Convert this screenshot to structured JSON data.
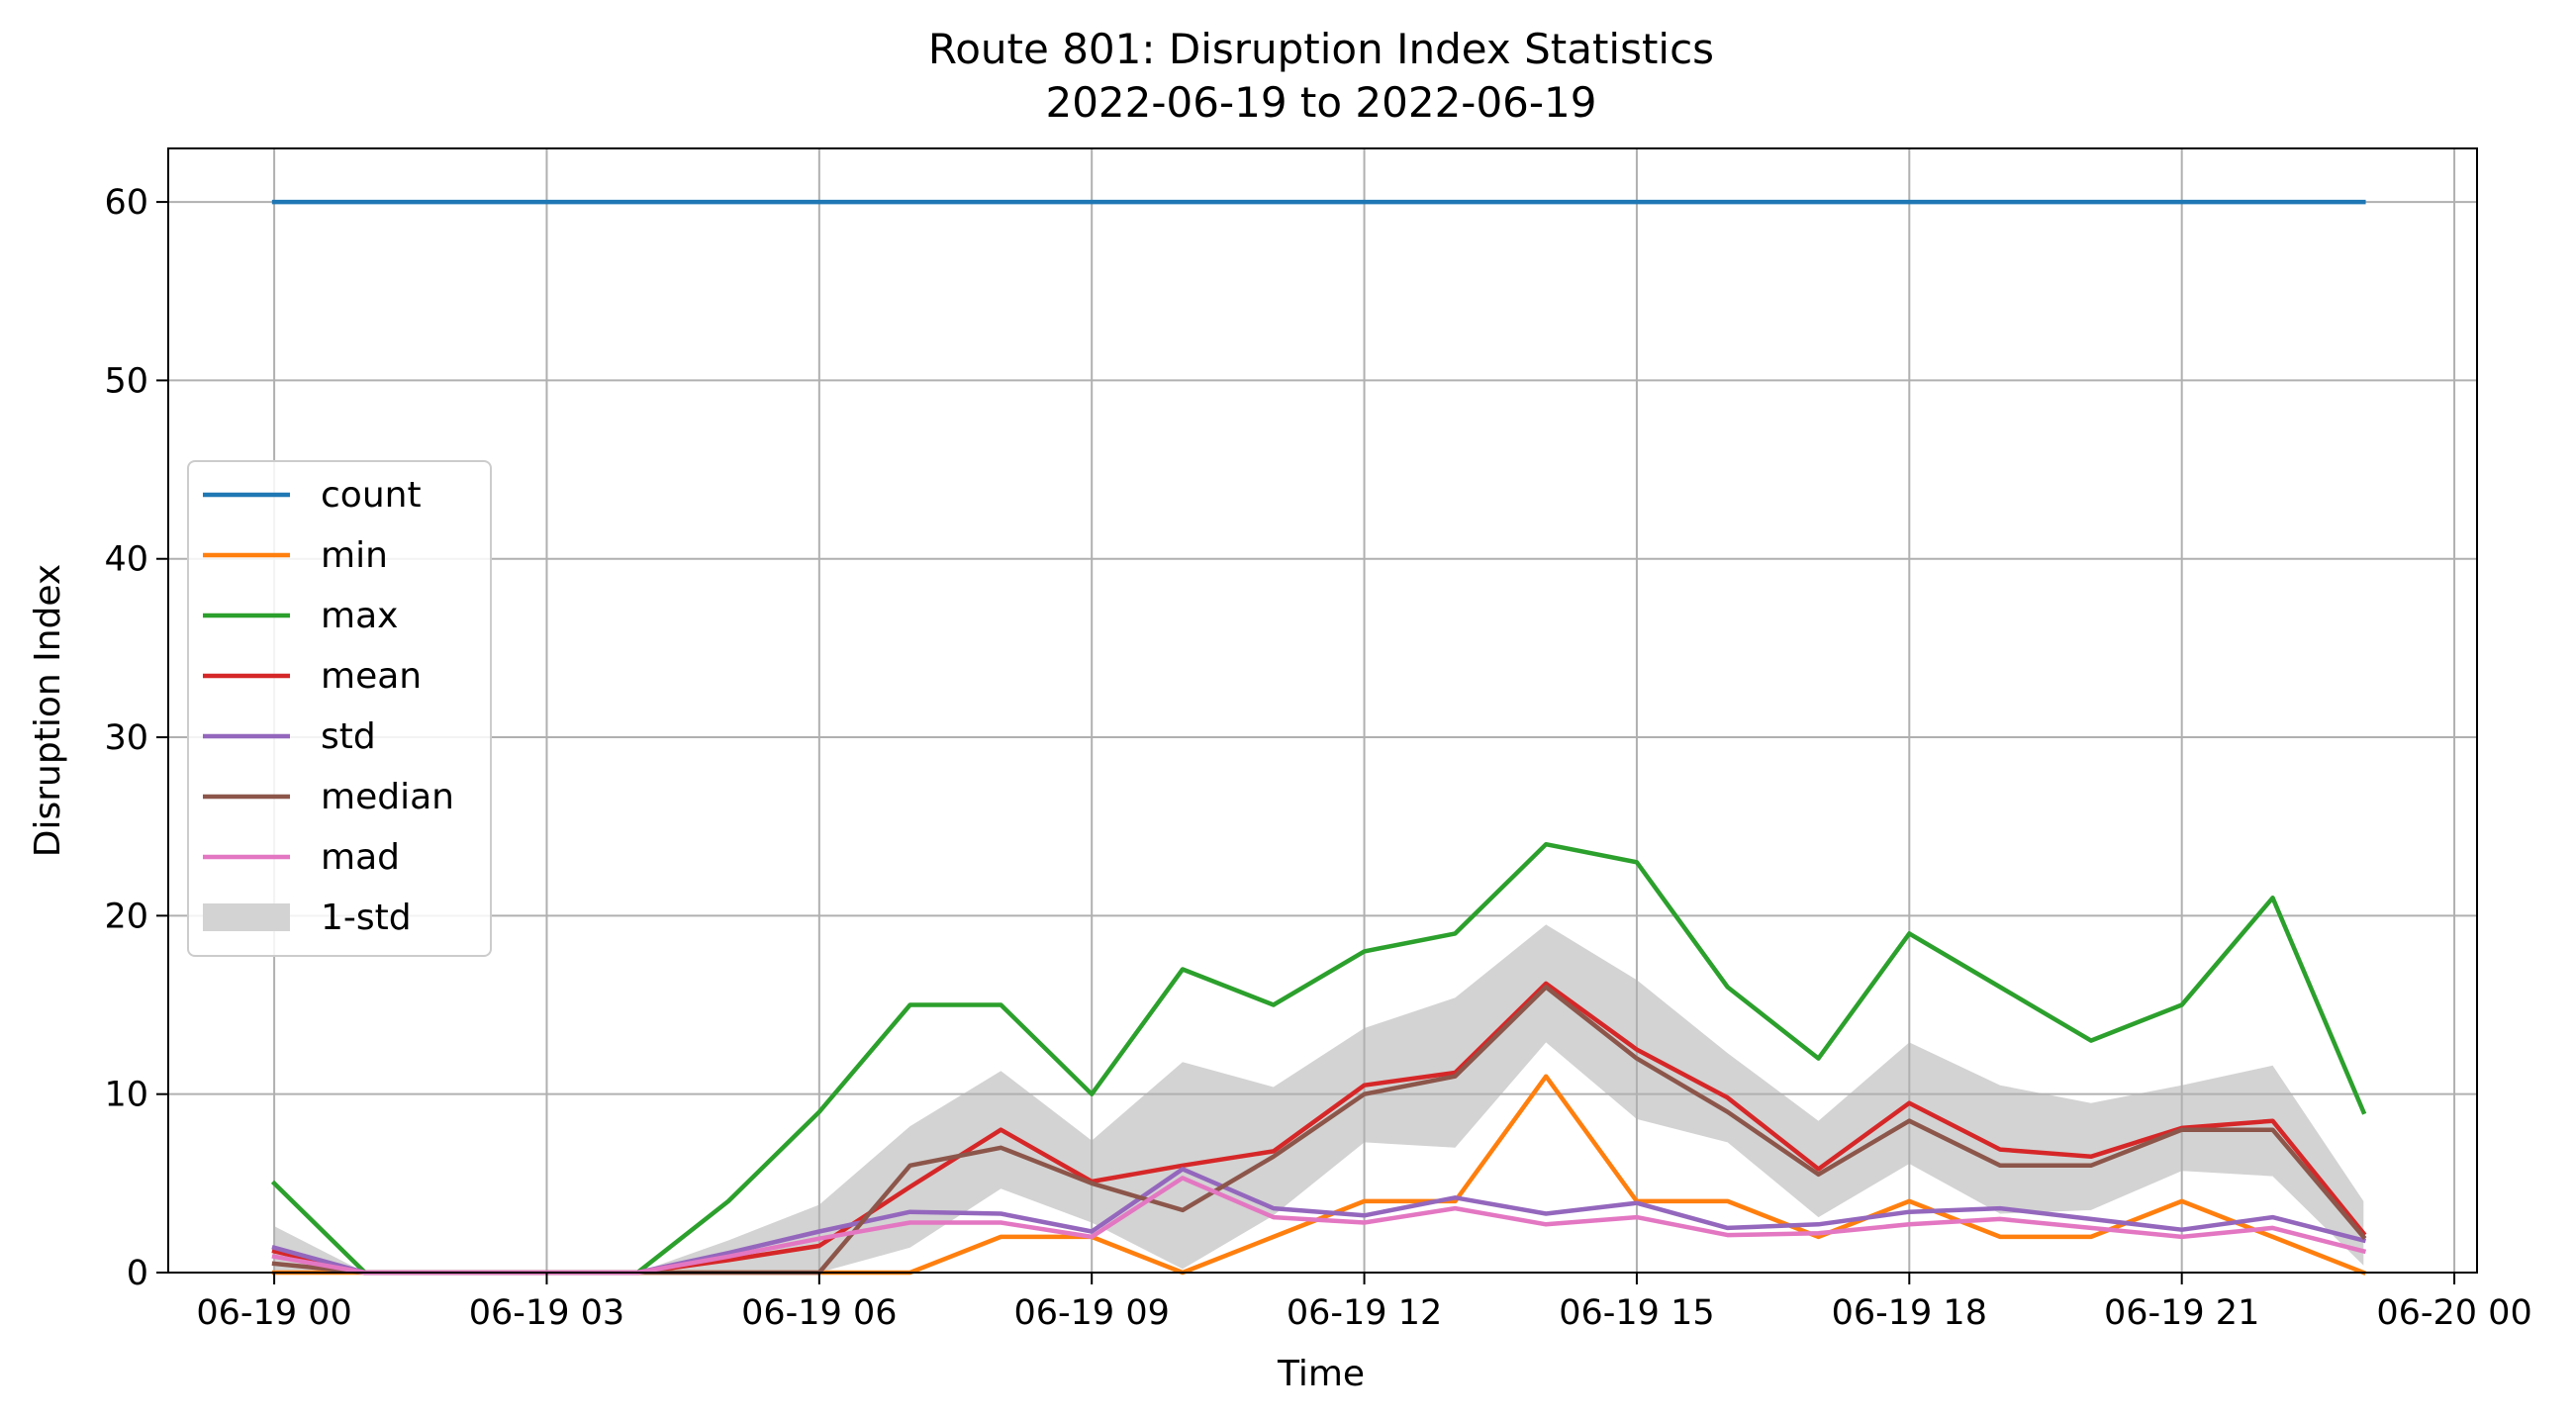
{
  "chart_data": {
    "type": "line",
    "title": "Route 801: Disruption Index Statistics",
    "subtitle": "2022-06-19 to 2022-06-19",
    "xlabel": "Time",
    "ylabel": "Disruption Index",
    "xlim": [
      "2022-06-18 22:50",
      "2022-06-20 00:15"
    ],
    "ylim": [
      0,
      63
    ],
    "grid": true,
    "legend_position": "center-left",
    "x_ticks": [
      "06-19 00",
      "06-19 03",
      "06-19 06",
      "06-19 09",
      "06-19 12",
      "06-19 15",
      "06-19 18",
      "06-19 21",
      "06-20 00"
    ],
    "y_ticks": [
      "0",
      "10",
      "20",
      "30",
      "40",
      "50",
      "60"
    ],
    "x": [
      "2022-06-19 00:00",
      "2022-06-19 01:00",
      "2022-06-19 02:00",
      "2022-06-19 03:00",
      "2022-06-19 04:00",
      "2022-06-19 05:00",
      "2022-06-19 06:00",
      "2022-06-19 07:00",
      "2022-06-19 08:00",
      "2022-06-19 09:00",
      "2022-06-19 10:00",
      "2022-06-19 11:00",
      "2022-06-19 12:00",
      "2022-06-19 13:00",
      "2022-06-19 14:00",
      "2022-06-19 15:00",
      "2022-06-19 16:00",
      "2022-06-19 17:00",
      "2022-06-19 18:00",
      "2022-06-19 19:00",
      "2022-06-19 20:00",
      "2022-06-19 21:00",
      "2022-06-19 22:00",
      "2022-06-19 23:00"
    ],
    "series": [
      {
        "name": "count",
        "color": "#1f77b4",
        "values": [
          60,
          60,
          60,
          60,
          60,
          60,
          60,
          60,
          60,
          60,
          60,
          60,
          60,
          60,
          60,
          60,
          60,
          60,
          60,
          60,
          60,
          60,
          60,
          60
        ]
      },
      {
        "name": "min",
        "color": "#ff7f0e",
        "values": [
          0,
          0,
          0,
          0,
          0,
          0,
          0,
          0,
          2,
          2,
          0,
          2,
          4,
          4,
          11,
          4,
          4,
          2,
          4,
          2,
          2,
          4,
          2,
          0
        ]
      },
      {
        "name": "max",
        "color": "#2ca02c",
        "values": [
          5,
          0,
          0,
          0,
          0,
          4,
          9,
          15,
          15,
          10,
          17,
          15,
          18,
          19,
          24,
          23,
          16,
          12,
          19,
          16,
          13,
          15,
          21,
          9
        ]
      },
      {
        "name": "mean",
        "color": "#d62728",
        "values": [
          1.2,
          0,
          0,
          0,
          0,
          0.7,
          1.5,
          4.8,
          8,
          5.1,
          6,
          6.8,
          10.5,
          11.2,
          16.2,
          12.5,
          9.8,
          5.8,
          9.5,
          6.9,
          6.5,
          8.1,
          8.5,
          2.2
        ]
      },
      {
        "name": "std",
        "color": "#9467bd",
        "values": [
          1.4,
          0,
          0,
          0,
          0,
          1.1,
          2.3,
          3.4,
          3.3,
          2.3,
          5.8,
          3.6,
          3.2,
          4.2,
          3.3,
          3.9,
          2.5,
          2.7,
          3.4,
          3.6,
          3.0,
          2.4,
          3.1,
          1.8
        ]
      },
      {
        "name": "median",
        "color": "#8c564b",
        "values": [
          0.5,
          0,
          0,
          0,
          0,
          0,
          0,
          6,
          7,
          5,
          3.5,
          6.5,
          10,
          11,
          16,
          12,
          9,
          5.5,
          8.5,
          6,
          6,
          8,
          8,
          2
        ]
      },
      {
        "name": "mad",
        "color": "#e377c2",
        "values": [
          0.9,
          0,
          0,
          0,
          0,
          0.9,
          1.9,
          2.8,
          2.8,
          2.0,
          5.3,
          3.1,
          2.8,
          3.6,
          2.7,
          3.1,
          2.1,
          2.2,
          2.7,
          3.0,
          2.5,
          2.0,
          2.5,
          1.2
        ]
      }
    ],
    "band": {
      "name": "1-std",
      "color": "#d3d3d3",
      "lower_of": "mean",
      "width_of": "std"
    }
  }
}
